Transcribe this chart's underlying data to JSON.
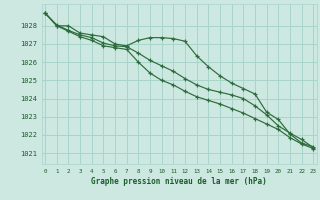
{
  "background_color": "#cce8e0",
  "grid_color": "#a8d4ca",
  "line_color": "#2d6b3c",
  "text_color": "#1a5c2a",
  "xlabel": "Graphe pression niveau de la mer (hPa)",
  "ylim": [
    1020.4,
    1029.2
  ],
  "xlim": [
    -0.3,
    23.3
  ],
  "yticks": [
    1021,
    1022,
    1023,
    1024,
    1025,
    1026,
    1027,
    1028
  ],
  "xticks": [
    0,
    1,
    2,
    3,
    4,
    5,
    6,
    7,
    8,
    9,
    10,
    11,
    12,
    13,
    14,
    15,
    16,
    17,
    18,
    19,
    20,
    21,
    22,
    23
  ],
  "series": [
    [
      1028.7,
      1028.0,
      1028.0,
      1027.6,
      1027.5,
      1027.4,
      1027.0,
      1026.9,
      1027.2,
      1027.35,
      1027.35,
      1027.3,
      1027.15,
      1026.35,
      1025.75,
      1025.25,
      1024.85,
      1024.55,
      1024.25,
      1023.25,
      1022.85,
      1022.05,
      1021.55,
      1021.35
    ],
    [
      1028.7,
      1028.05,
      1027.75,
      1027.5,
      1027.35,
      1027.05,
      1026.9,
      1026.85,
      1026.5,
      1026.1,
      1025.8,
      1025.5,
      1025.1,
      1024.75,
      1024.5,
      1024.35,
      1024.2,
      1024.0,
      1023.6,
      1023.1,
      1022.5,
      1022.1,
      1021.75,
      1021.3
    ],
    [
      1028.7,
      1028.0,
      1027.7,
      1027.4,
      1027.2,
      1026.9,
      1026.8,
      1026.7,
      1026.0,
      1025.4,
      1025.0,
      1024.75,
      1024.4,
      1024.1,
      1023.9,
      1023.7,
      1023.45,
      1023.2,
      1022.9,
      1022.6,
      1022.3,
      1021.85,
      1021.5,
      1021.25
    ]
  ]
}
